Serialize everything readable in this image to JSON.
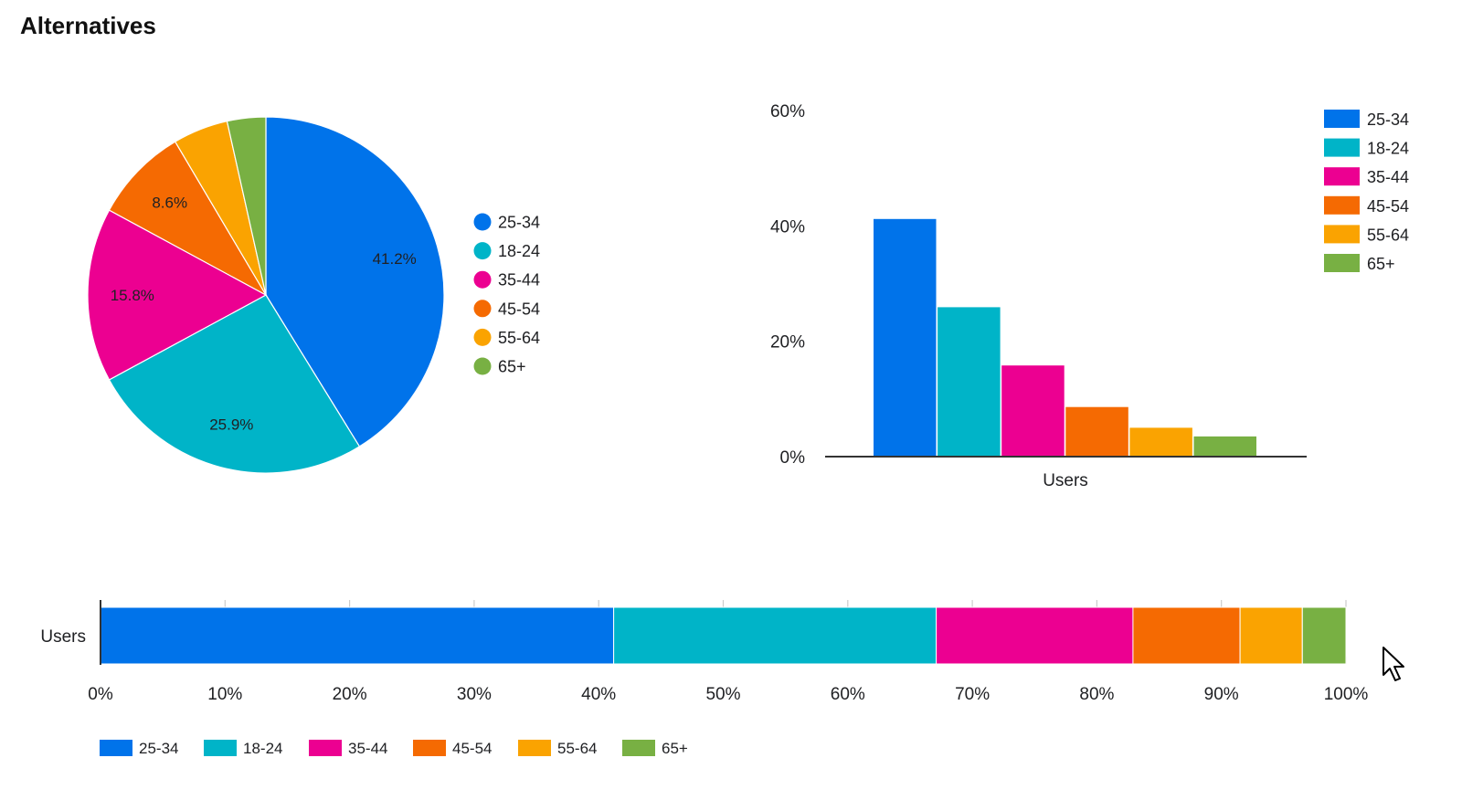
{
  "page": {
    "title": "Alternatives"
  },
  "colors": {
    "25-34": "#0073EA",
    "18-24": "#00B4C8",
    "35-44": "#EC0091",
    "45-54": "#F56A02",
    "55-64": "#FAA301",
    "65+": "#78B043"
  },
  "chart_data": [
    {
      "type": "pie",
      "categories": [
        "25-34",
        "18-24",
        "35-44",
        "45-54",
        "55-64",
        "65+"
      ],
      "values": [
        41.2,
        25.9,
        15.8,
        8.6,
        5.0,
        3.5
      ],
      "labels": [
        "41.2%",
        "25.9%",
        "15.8%",
        "8.6%",
        "",
        ""
      ],
      "legend": {
        "position": "right",
        "items": [
          "25-34",
          "18-24",
          "35-44",
          "45-54",
          "55-64",
          "65+"
        ]
      }
    },
    {
      "type": "bar",
      "x": [
        "Users"
      ],
      "categories": [
        "25-34",
        "18-24",
        "35-44",
        "45-54",
        "55-64",
        "65+"
      ],
      "values": [
        41.2,
        25.9,
        15.8,
        8.6,
        5.0,
        3.5
      ],
      "xlabel": "Users",
      "ylim": [
        0,
        60
      ],
      "yticks": [
        "0%",
        "20%",
        "40%",
        "60%"
      ],
      "grid": false,
      "legend": {
        "position": "top-right",
        "items": [
          "25-34",
          "18-24",
          "35-44",
          "45-54",
          "55-64",
          "65+"
        ]
      }
    },
    {
      "type": "bar",
      "orientation": "horizontal",
      "stacked": "percent",
      "y": [
        "Users"
      ],
      "categories": [
        "25-34",
        "18-24",
        "35-44",
        "45-54",
        "55-64",
        "65+"
      ],
      "values": [
        41.2,
        25.9,
        15.8,
        8.6,
        5.0,
        3.5
      ],
      "ylabel": "Users",
      "xlim": [
        0,
        100
      ],
      "xticks": [
        "0%",
        "10%",
        "20%",
        "30%",
        "40%",
        "50%",
        "60%",
        "70%",
        "80%",
        "90%",
        "100%"
      ],
      "grid": true,
      "legend": {
        "position": "bottom",
        "items": [
          "25-34",
          "18-24",
          "35-44",
          "45-54",
          "55-64",
          "65+"
        ]
      }
    }
  ]
}
